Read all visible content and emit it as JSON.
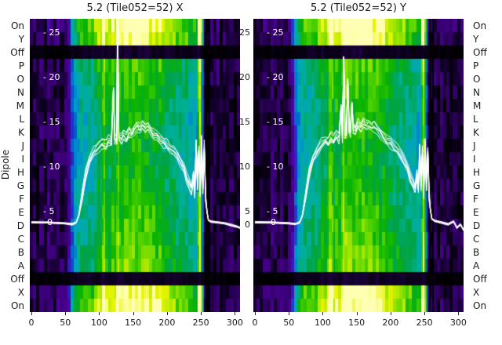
{
  "figure": {
    "ylabel": "Dipole",
    "background": "#ffffff",
    "text_color": "#1a1a1a",
    "line_color": "#ffffff"
  },
  "dipole_labels": [
    "On",
    "Y",
    "Off",
    "P",
    "O",
    "N",
    "M",
    "L",
    "K",
    "J",
    "I",
    "H",
    "G",
    "F",
    "E",
    "D",
    "C",
    "B",
    "A",
    "Off",
    "X",
    "On"
  ],
  "colormap": [
    [
      0.0,
      "#000000"
    ],
    [
      0.06,
      "#0e0022"
    ],
    [
      0.14,
      "#3a0076"
    ],
    [
      0.22,
      "#5000a0"
    ],
    [
      0.3,
      "#2828c8"
    ],
    [
      0.38,
      "#0064d2"
    ],
    [
      0.46,
      "#00a0c8"
    ],
    [
      0.54,
      "#00b094"
    ],
    [
      0.62,
      "#00a246"
    ],
    [
      0.7,
      "#0ab400"
    ],
    [
      0.78,
      "#55d400"
    ],
    [
      0.86,
      "#a8e800"
    ],
    [
      0.93,
      "#e8f400"
    ],
    [
      1.0,
      "#ffffb4"
    ]
  ],
  "chart_data": [
    {
      "type": "heatmap",
      "title": "5.2 (Tile052=52) X",
      "x_ticks": [
        0,
        50,
        100,
        150,
        200,
        250,
        300
      ],
      "x_tick_labels": [
        "0",
        "50",
        "100",
        "150",
        "200",
        "250",
        "300"
      ],
      "x_range": [
        0,
        310
      ],
      "row_labels": [
        "On",
        "Y",
        "Off",
        "P",
        "O",
        "N",
        "M",
        "L",
        "K",
        "J",
        "I",
        "H",
        "G",
        "F",
        "E",
        "D",
        "C",
        "B",
        "A",
        "Off",
        "X",
        "On"
      ],
      "overlay_axis": {
        "tick_labels": [
          "- 25",
          "- 20",
          "- 15",
          "- 10",
          "- 5"
        ],
        "tick_values": [
          25,
          20,
          15,
          10,
          5
        ],
        "zero_label": "0",
        "range": [
          0,
          25
        ]
      },
      "right_axis_labels": [
        "25",
        "20",
        "15",
        "10",
        "5"
      ],
      "right_axis_zero": "0",
      "row_gains": [
        1.25,
        1.2,
        0.08,
        0.95,
        0.92,
        0.9,
        0.88,
        0.86,
        0.84,
        0.83,
        0.83,
        0.84,
        0.86,
        0.88,
        0.9,
        0.92,
        0.94,
        0.96,
        0.98,
        0.08,
        1.22,
        1.25
      ],
      "column_step": 5,
      "columns": [
        0.05,
        0.1,
        0.07,
        0.13,
        0.09,
        0.15,
        0.11,
        0.09,
        0.14,
        0.1,
        0.13,
        0.22,
        0.38,
        0.5,
        0.56,
        0.61,
        0.58,
        0.63,
        0.6,
        0.68,
        0.73,
        0.69,
        0.76,
        0.72,
        0.79,
        0.75,
        0.81,
        0.77,
        0.83,
        0.79,
        0.85,
        0.81,
        0.84,
        0.8,
        0.82,
        0.78,
        0.81,
        0.76,
        0.79,
        0.73,
        0.71,
        0.67,
        0.69,
        0.64,
        0.66,
        0.61,
        0.63,
        0.58,
        0.56,
        0.53,
        0.72,
        0.4,
        0.2,
        0.1,
        0.07,
        0.13,
        0.07,
        0.11,
        0.06,
        0.1,
        0.06,
        0.09,
        0.05
      ],
      "streaks": [
        {
          "x": 107,
          "d": 0.14
        },
        {
          "x": 128,
          "d": 0.1
        },
        {
          "x": 248,
          "d": 0.3
        },
        {
          "x": 257,
          "d": -0.3
        },
        {
          "x": 262,
          "d": -0.18
        }
      ],
      "line": [
        [
          0,
          3.8
        ],
        [
          25,
          3.8
        ],
        [
          50,
          3.7
        ],
        [
          60,
          3.6
        ],
        [
          66,
          3.8
        ],
        [
          70,
          4.6
        ],
        [
          75,
          6.8
        ],
        [
          80,
          9.2
        ],
        [
          86,
          10.8
        ],
        [
          92,
          11.6
        ],
        [
          98,
          12.2
        ],
        [
          104,
          12.7
        ],
        [
          110,
          12.5
        ],
        [
          114,
          13.1
        ],
        [
          118,
          12.8
        ],
        [
          121,
          18.8
        ],
        [
          123,
          13.2
        ],
        [
          126,
          13.0
        ],
        [
          127,
          26.3
        ],
        [
          129,
          13.4
        ],
        [
          133,
          13.1
        ],
        [
          136,
          13.6
        ],
        [
          140,
          13.3
        ],
        [
          144,
          14.0
        ],
        [
          148,
          13.6
        ],
        [
          152,
          14.3
        ],
        [
          156,
          14.6
        ],
        [
          160,
          14.2
        ],
        [
          164,
          14.7
        ],
        [
          168,
          14.3
        ],
        [
          172,
          14.5
        ],
        [
          176,
          14.1
        ],
        [
          180,
          13.8
        ],
        [
          185,
          13.5
        ],
        [
          190,
          13.1
        ],
        [
          195,
          12.8
        ],
        [
          200,
          12.5
        ],
        [
          205,
          12.1
        ],
        [
          210,
          11.8
        ],
        [
          215,
          11.3
        ],
        [
          220,
          10.6
        ],
        [
          225,
          9.8
        ],
        [
          229,
          8.8
        ],
        [
          233,
          8.0
        ],
        [
          236,
          7.5
        ],
        [
          239,
          9.0
        ],
        [
          241,
          7.3
        ],
        [
          243,
          12.6
        ],
        [
          245,
          7.9
        ],
        [
          247,
          12.0
        ],
        [
          249,
          7.1
        ],
        [
          251,
          13.0
        ],
        [
          253,
          7.7
        ],
        [
          255,
          12.3
        ],
        [
          257,
          6.6
        ],
        [
          259,
          5.0
        ],
        [
          261,
          4.1
        ],
        [
          265,
          3.9
        ],
        [
          275,
          3.8
        ],
        [
          285,
          3.7
        ],
        [
          295,
          3.5
        ],
        [
          305,
          3.3
        ],
        [
          310,
          3.1
        ]
      ]
    },
    {
      "type": "heatmap",
      "title": "5.2 (Tile052=52) Y",
      "x_ticks": [
        0,
        50,
        100,
        150,
        200,
        250,
        300
      ],
      "x_tick_labels": [
        "0",
        "50",
        "100",
        "150",
        "200",
        "250",
        "300"
      ],
      "x_range": [
        0,
        310
      ],
      "row_labels": [
        "On",
        "Y",
        "Off",
        "P",
        "O",
        "N",
        "M",
        "L",
        "K",
        "J",
        "I",
        "H",
        "G",
        "F",
        "E",
        "D",
        "C",
        "B",
        "A",
        "Off",
        "X",
        "On"
      ],
      "overlay_axis": {
        "tick_labels": [
          "- 25",
          "- 20",
          "- 15",
          "- 10",
          "- 5"
        ],
        "tick_values": [
          25,
          20,
          15,
          10,
          5
        ],
        "zero_label": "0",
        "range": [
          0,
          25
        ]
      },
      "row_gains": [
        1.25,
        1.2,
        0.08,
        0.95,
        0.92,
        0.9,
        0.88,
        0.86,
        0.84,
        0.83,
        0.83,
        0.84,
        0.86,
        0.88,
        0.9,
        0.92,
        0.94,
        0.96,
        0.98,
        0.08,
        1.22,
        1.25
      ],
      "column_step": 5,
      "columns": [
        0.06,
        0.09,
        0.08,
        0.12,
        0.1,
        0.14,
        0.1,
        0.1,
        0.13,
        0.09,
        0.14,
        0.24,
        0.4,
        0.52,
        0.57,
        0.62,
        0.59,
        0.64,
        0.61,
        0.69,
        0.74,
        0.7,
        0.77,
        0.73,
        0.8,
        0.76,
        0.82,
        0.78,
        0.84,
        0.8,
        0.86,
        0.82,
        0.85,
        0.81,
        0.83,
        0.79,
        0.82,
        0.77,
        0.8,
        0.74,
        0.72,
        0.68,
        0.7,
        0.65,
        0.67,
        0.62,
        0.64,
        0.59,
        0.57,
        0.54,
        0.7,
        0.42,
        0.22,
        0.11,
        0.08,
        0.12,
        0.08,
        0.1,
        0.07,
        0.11,
        0.05,
        0.1,
        0.06
      ],
      "streaks": [
        {
          "x": 112,
          "d": 0.12
        },
        {
          "x": 133,
          "d": 0.1
        },
        {
          "x": 247,
          "d": 0.28
        },
        {
          "x": 256,
          "d": -0.28
        },
        {
          "x": 262,
          "d": -0.16
        }
      ],
      "line": [
        [
          0,
          3.8
        ],
        [
          25,
          3.8
        ],
        [
          50,
          3.7
        ],
        [
          60,
          3.6
        ],
        [
          66,
          3.8
        ],
        [
          70,
          4.6
        ],
        [
          75,
          6.9
        ],
        [
          80,
          9.4
        ],
        [
          86,
          11.0
        ],
        [
          92,
          11.9
        ],
        [
          98,
          12.5
        ],
        [
          104,
          13.0
        ],
        [
          108,
          12.7
        ],
        [
          112,
          13.3
        ],
        [
          116,
          13.0
        ],
        [
          120,
          13.6
        ],
        [
          124,
          13.2
        ],
        [
          127,
          16.5
        ],
        [
          129,
          13.4
        ],
        [
          131,
          22.3
        ],
        [
          133,
          13.8
        ],
        [
          135,
          14.0
        ],
        [
          137,
          19.8
        ],
        [
          139,
          14.2
        ],
        [
          141,
          14.0
        ],
        [
          143,
          17.2
        ],
        [
          145,
          14.4
        ],
        [
          148,
          14.1
        ],
        [
          152,
          14.8
        ],
        [
          156,
          14.4
        ],
        [
          160,
          15.0
        ],
        [
          164,
          14.6
        ],
        [
          168,
          14.8
        ],
        [
          172,
          14.4
        ],
        [
          176,
          14.6
        ],
        [
          180,
          14.2
        ],
        [
          185,
          13.8
        ],
        [
          190,
          13.4
        ],
        [
          195,
          13.0
        ],
        [
          200,
          12.7
        ],
        [
          205,
          12.3
        ],
        [
          210,
          11.9
        ],
        [
          215,
          11.4
        ],
        [
          220,
          10.7
        ],
        [
          225,
          9.9
        ],
        [
          229,
          8.9
        ],
        [
          233,
          8.1
        ],
        [
          236,
          7.6
        ],
        [
          239,
          9.2
        ],
        [
          241,
          7.4
        ],
        [
          243,
          12.2
        ],
        [
          245,
          8.0
        ],
        [
          247,
          11.6
        ],
        [
          249,
          7.2
        ],
        [
          251,
          12.6
        ],
        [
          253,
          7.8
        ],
        [
          255,
          11.9
        ],
        [
          257,
          6.7
        ],
        [
          259,
          5.1
        ],
        [
          261,
          4.2
        ],
        [
          265,
          4.0
        ],
        [
          275,
          3.8
        ],
        [
          285,
          3.6
        ],
        [
          293,
          3.9
        ],
        [
          298,
          3.2
        ],
        [
          303,
          3.6
        ],
        [
          308,
          2.9
        ],
        [
          310,
          2.7
        ]
      ]
    }
  ]
}
